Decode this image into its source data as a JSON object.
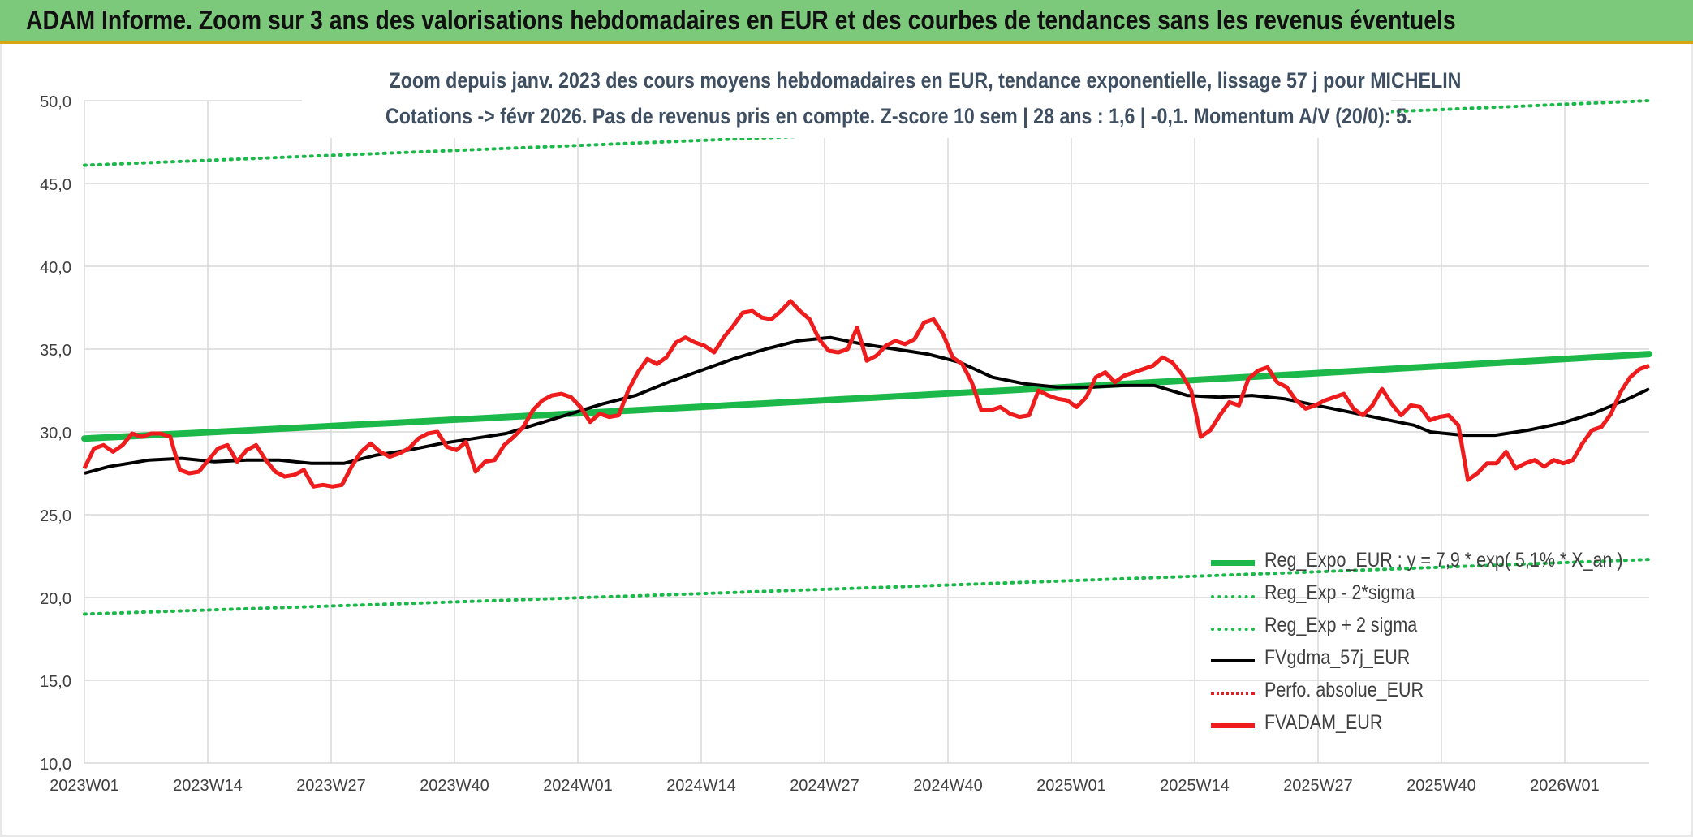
{
  "header": {
    "title": "ADAM Informe. Zoom sur 3 ans des valorisations hebdomadaires en EUR et des courbes de tendances sans les revenus éventuels"
  },
  "chart_data": {
    "type": "line",
    "title_line1": "Zoom depuis janv. 2023 des cours moyens hebdomadaires en EUR, tendance exponentielle, lissage 57 j pour MICHELIN",
    "title_line2": "Cotations -> févr 2026. Pas de revenus pris en compte. Z-score 10 sem | 28 ans : 1,6 | -0,1. Momentum A/V (20/0): 5.",
    "ylim": [
      10,
      50
    ],
    "yticks": [
      "10,0",
      "15,0",
      "20,0",
      "25,0",
      "30,0",
      "35,0",
      "40,0",
      "45,0",
      "50,0"
    ],
    "yvalues": [
      10,
      15,
      20,
      25,
      30,
      35,
      40,
      45,
      50
    ],
    "xticks": [
      "2023W01",
      "2023W14",
      "2023W27",
      "2023W40",
      "2024W01",
      "2024W14",
      "2024W27",
      "2024W40",
      "2025W01",
      "2025W14",
      "2025W27",
      "2025W40",
      "2026W01"
    ],
    "week_count": 167,
    "grid": true,
    "legend_position": "bottom-right",
    "series": [
      {
        "name": "Reg_Expo_EUR : y = 7,9 * exp( 5,1% * X_an )",
        "style": "thick-solid",
        "color": "#1db84a",
        "start": 29.6,
        "end": 34.7
      },
      {
        "name": "Reg_Exp - 2*sigma",
        "style": "dotted",
        "color": "#1db84a",
        "start": 19.0,
        "end": 22.3
      },
      {
        "name": "Reg_Exp + 2 sigma",
        "style": "dotted",
        "color": "#1db84a",
        "start": 46.1,
        "end": 50.0
      },
      {
        "name": "FVgdma_57j_EUR",
        "style": "solid",
        "color": "#000000",
        "values": [
          [
            0,
            27.5
          ],
          [
            3,
            27.9
          ],
          [
            8,
            28.3
          ],
          [
            12,
            28.4
          ],
          [
            16,
            28.2
          ],
          [
            20,
            28.3
          ],
          [
            24,
            28.3
          ],
          [
            28,
            28.1
          ],
          [
            32,
            28.1
          ],
          [
            36,
            28.6
          ],
          [
            40,
            28.9
          ],
          [
            44,
            29.3
          ],
          [
            48,
            29.6
          ],
          [
            52,
            29.9
          ],
          [
            56,
            30.5
          ],
          [
            60,
            31.1
          ],
          [
            64,
            31.7
          ],
          [
            68,
            32.2
          ],
          [
            72,
            33.0
          ],
          [
            76,
            33.7
          ],
          [
            80,
            34.4
          ],
          [
            84,
            35.0
          ],
          [
            88,
            35.5
          ],
          [
            92,
            35.7
          ],
          [
            96,
            35.3
          ],
          [
            100,
            35.0
          ],
          [
            104,
            34.7
          ],
          [
            108,
            34.2
          ],
          [
            112,
            33.3
          ],
          [
            116,
            32.9
          ],
          [
            120,
            32.7
          ],
          [
            124,
            32.7
          ],
          [
            128,
            32.8
          ],
          [
            132,
            32.8
          ],
          [
            136,
            32.2
          ],
          [
            140,
            32.1
          ],
          [
            144,
            32.2
          ],
          [
            148,
            32.0
          ],
          [
            152,
            31.6
          ],
          [
            156,
            31.2
          ],
          [
            160,
            30.8
          ],
          [
            164,
            30.4
          ],
          [
            166,
            30.0
          ],
          [
            170,
            29.8
          ],
          [
            174,
            29.8
          ],
          [
            178,
            30.1
          ],
          [
            182,
            30.5
          ],
          [
            186,
            31.1
          ],
          [
            190,
            31.9
          ],
          [
            193,
            32.6
          ]
        ]
      },
      {
        "name": "Perfo. absolue_EUR",
        "style": "dotted",
        "color": "#e02020",
        "values": []
      },
      {
        "name": "FVADAM_EUR",
        "style": "thick-solid",
        "color": "#ee1c1c",
        "values": [
          [
            0,
            27.8
          ],
          [
            1,
            29.0
          ],
          [
            2,
            29.2
          ],
          [
            3,
            28.8
          ],
          [
            4,
            29.2
          ],
          [
            5,
            29.9
          ],
          [
            6,
            29.7
          ],
          [
            7,
            29.9
          ],
          [
            8,
            29.9
          ],
          [
            9,
            29.7
          ],
          [
            10,
            27.7
          ],
          [
            11,
            27.5
          ],
          [
            12,
            27.6
          ],
          [
            13,
            28.3
          ],
          [
            14,
            29.0
          ],
          [
            15,
            29.2
          ],
          [
            16,
            28.2
          ],
          [
            17,
            28.9
          ],
          [
            18,
            29.2
          ],
          [
            19,
            28.3
          ],
          [
            20,
            27.6
          ],
          [
            21,
            27.3
          ],
          [
            22,
            27.4
          ],
          [
            23,
            27.7
          ],
          [
            24,
            26.7
          ],
          [
            25,
            26.8
          ],
          [
            26,
            26.7
          ],
          [
            27,
            26.8
          ],
          [
            28,
            27.9
          ],
          [
            29,
            28.8
          ],
          [
            30,
            29.3
          ],
          [
            31,
            28.8
          ],
          [
            32,
            28.5
          ],
          [
            33,
            28.7
          ],
          [
            34,
            29.0
          ],
          [
            35,
            29.6
          ],
          [
            36,
            29.9
          ],
          [
            37,
            30.0
          ],
          [
            38,
            29.1
          ],
          [
            39,
            28.9
          ],
          [
            40,
            29.4
          ],
          [
            41,
            27.6
          ],
          [
            42,
            28.2
          ],
          [
            43,
            28.3
          ],
          [
            44,
            29.2
          ],
          [
            45,
            29.7
          ],
          [
            46,
            30.3
          ],
          [
            47,
            31.3
          ],
          [
            48,
            31.9
          ],
          [
            49,
            32.2
          ],
          [
            50,
            32.3
          ],
          [
            51,
            32.1
          ],
          [
            52,
            31.5
          ],
          [
            53,
            30.6
          ],
          [
            54,
            31.1
          ],
          [
            55,
            30.9
          ],
          [
            56,
            31.0
          ],
          [
            57,
            32.5
          ],
          [
            58,
            33.6
          ],
          [
            59,
            34.4
          ],
          [
            60,
            34.1
          ],
          [
            61,
            34.5
          ],
          [
            62,
            35.4
          ],
          [
            63,
            35.7
          ],
          [
            64,
            35.4
          ],
          [
            65,
            35.2
          ],
          [
            66,
            34.8
          ],
          [
            67,
            35.7
          ],
          [
            68,
            36.4
          ],
          [
            69,
            37.2
          ],
          [
            70,
            37.3
          ],
          [
            71,
            36.9
          ],
          [
            72,
            36.8
          ],
          [
            73,
            37.3
          ],
          [
            74,
            37.9
          ],
          [
            75,
            37.3
          ],
          [
            76,
            36.8
          ],
          [
            77,
            35.6
          ],
          [
            78,
            34.9
          ],
          [
            79,
            34.8
          ],
          [
            80,
            35.0
          ],
          [
            81,
            36.3
          ],
          [
            82,
            34.3
          ],
          [
            83,
            34.6
          ],
          [
            84,
            35.2
          ],
          [
            85,
            35.5
          ],
          [
            86,
            35.3
          ],
          [
            87,
            35.6
          ],
          [
            88,
            36.6
          ],
          [
            89,
            36.8
          ],
          [
            90,
            35.9
          ],
          [
            91,
            34.5
          ],
          [
            92,
            34.1
          ],
          [
            93,
            33.0
          ],
          [
            94,
            31.3
          ],
          [
            95,
            31.3
          ],
          [
            96,
            31.5
          ],
          [
            97,
            31.1
          ],
          [
            98,
            30.9
          ],
          [
            99,
            31.0
          ],
          [
            100,
            32.5
          ],
          [
            101,
            32.2
          ],
          [
            102,
            32.0
          ],
          [
            103,
            31.9
          ],
          [
            104,
            31.5
          ],
          [
            105,
            32.1
          ],
          [
            106,
            33.3
          ],
          [
            107,
            33.6
          ],
          [
            108,
            33.0
          ],
          [
            109,
            33.4
          ],
          [
            110,
            33.6
          ],
          [
            111,
            33.8
          ],
          [
            112,
            34.0
          ],
          [
            113,
            34.5
          ],
          [
            114,
            34.2
          ],
          [
            115,
            33.5
          ],
          [
            116,
            32.5
          ],
          [
            117,
            29.7
          ],
          [
            118,
            30.1
          ],
          [
            119,
            31.0
          ],
          [
            120,
            31.8
          ],
          [
            121,
            31.6
          ],
          [
            122,
            33.2
          ],
          [
            123,
            33.7
          ],
          [
            124,
            33.9
          ],
          [
            125,
            33.0
          ],
          [
            126,
            32.7
          ],
          [
            127,
            31.9
          ],
          [
            128,
            31.4
          ],
          [
            129,
            31.6
          ],
          [
            130,
            31.9
          ],
          [
            131,
            32.1
          ],
          [
            132,
            32.3
          ],
          [
            133,
            31.4
          ],
          [
            134,
            31.0
          ],
          [
            135,
            31.6
          ],
          [
            136,
            32.6
          ],
          [
            137,
            31.7
          ],
          [
            138,
            31.0
          ],
          [
            139,
            31.6
          ],
          [
            140,
            31.5
          ],
          [
            141,
            30.7
          ],
          [
            142,
            30.9
          ],
          [
            143,
            31.0
          ],
          [
            144,
            30.4
          ],
          [
            145,
            27.1
          ],
          [
            146,
            27.5
          ],
          [
            147,
            28.1
          ],
          [
            148,
            28.1
          ],
          [
            149,
            28.8
          ],
          [
            150,
            27.8
          ],
          [
            151,
            28.1
          ],
          [
            152,
            28.3
          ],
          [
            153,
            27.9
          ],
          [
            154,
            28.3
          ],
          [
            155,
            28.1
          ],
          [
            156,
            28.3
          ],
          [
            157,
            29.3
          ],
          [
            158,
            30.1
          ],
          [
            159,
            30.3
          ],
          [
            160,
            31.1
          ],
          [
            161,
            32.4
          ],
          [
            162,
            33.3
          ],
          [
            163,
            33.8
          ],
          [
            164,
            34.0
          ]
        ]
      }
    ]
  }
}
